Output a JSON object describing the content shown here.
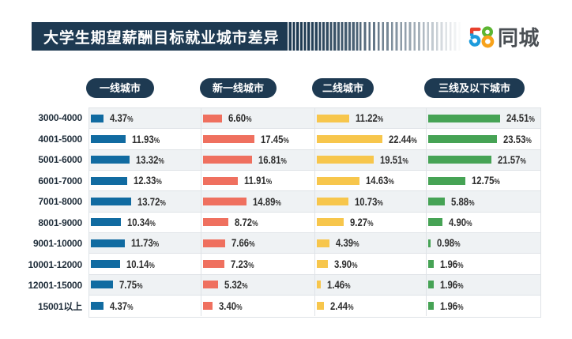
{
  "title": "大学生期望薪酬目标就业城市差异",
  "logo": {
    "brand_number": "58",
    "brand_text": "同城",
    "colors": {
      "five_red": "#e8402d",
      "five_blue": "#1d9bdc",
      "eight_green": "#5cb531",
      "eight_orange": "#f7a21b",
      "cn_gray": "#4a4f54"
    }
  },
  "chart_data": {
    "type": "bar",
    "title": "大学生期望薪酬目标就业城市差异",
    "orientation": "horizontal",
    "unit": "%",
    "categories": [
      "3000-4000",
      "4001-5000",
      "5001-6000",
      "6001-7000",
      "7001-8000",
      "8001-9000",
      "9001-10000",
      "10001-12000",
      "12001-15000",
      "15001以上"
    ],
    "series": [
      {
        "name": "一线城市",
        "color": "#116ba1",
        "values": [
          4.37,
          11.93,
          13.32,
          12.33,
          13.72,
          10.34,
          11.73,
          10.14,
          7.75,
          4.37
        ]
      },
      {
        "name": "新一线城市",
        "color": "#ef705f",
        "values": [
          6.6,
          17.45,
          16.81,
          11.91,
          14.89,
          8.72,
          7.66,
          7.23,
          5.32,
          3.4
        ]
      },
      {
        "name": "二线城市",
        "color": "#f7c64c",
        "values": [
          11.22,
          22.44,
          19.51,
          14.63,
          10.73,
          9.27,
          4.39,
          3.9,
          1.46,
          2.44
        ]
      },
      {
        "name": "三线及以下城市",
        "color": "#46a355",
        "values": [
          24.51,
          23.53,
          21.57,
          12.75,
          5.88,
          4.9,
          0.98,
          1.96,
          1.96,
          1.96
        ]
      }
    ],
    "legend_position": "top",
    "grid": true,
    "row_alt_background": "#eff2f4",
    "grid_line_color": "#dfe3e7",
    "accent_color": "#1e3a52"
  }
}
